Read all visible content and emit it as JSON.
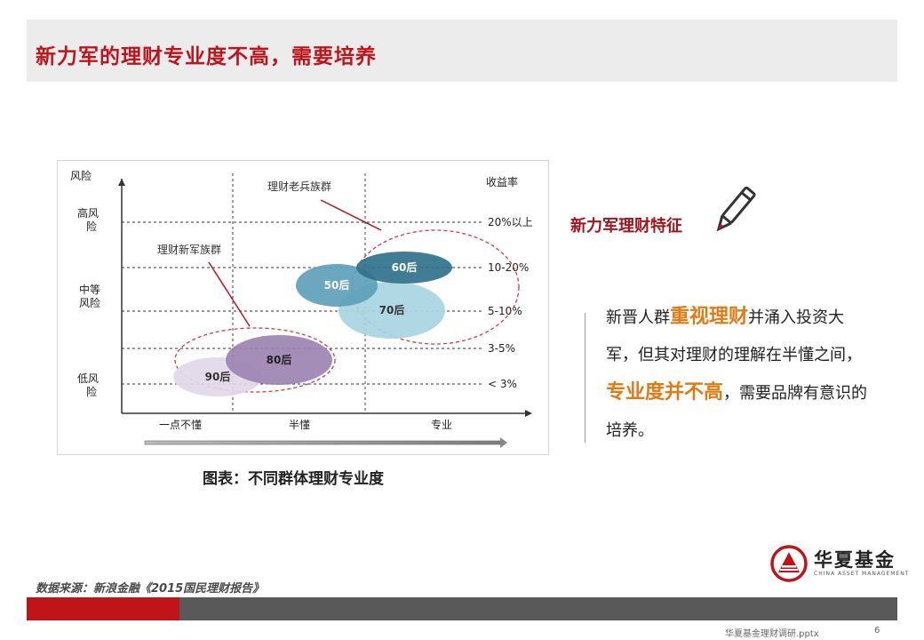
{
  "slide": {
    "title": "新力军的理财专业度不高，需要培养",
    "caption": "图表：不同群体理财专业度",
    "side_heading": "新力军理财特征",
    "side_text": [
      {
        "text": "新晋人群",
        "highlight": false
      },
      {
        "text": "重视理财",
        "highlight": true
      },
      {
        "text": "并涌入投资大军，但其对理财的理解在半懂之间，",
        "highlight": false
      },
      {
        "text": "专业度并不高",
        "highlight": true
      },
      {
        "text": "，需要品牌有意识的培养。",
        "highlight": false
      }
    ],
    "logo_name": "华夏基金",
    "logo_sub": "CHINA ASSET MANAGEMENT",
    "source": "数据来源：新浪金融《2015国民理财报告》",
    "footer_file": "华夏基金理财调研.pptx",
    "page_number": "6",
    "colors": {
      "title": "#c0141b",
      "highlight": "#e07b14",
      "footer_red": "#c0141b",
      "footer_grey": "#595959"
    }
  },
  "chart_data": {
    "type": "scatter",
    "x_axis": {
      "categories": [
        "一点不懂",
        "半懂",
        "专业"
      ]
    },
    "y_axis": {
      "title": "风险",
      "right_title": "收益率",
      "left_labels": [
        "高风险",
        "中等风险",
        "低风险"
      ],
      "right_labels": [
        "20%以上",
        "10-20%",
        "5-10%",
        "3-5%",
        "< 3%"
      ]
    },
    "series": [
      {
        "name": "90后",
        "group": "理财新军族群",
        "expertise": "一点不懂",
        "return_band": "< 3%",
        "color": "#e1d8e8"
      },
      {
        "name": "80后",
        "group": "理财新军族群",
        "expertise": "半懂",
        "return_band": "3-5%",
        "color": "#9c84b2"
      },
      {
        "name": "70后",
        "group": "理财老兵族群",
        "expertise": "专业",
        "return_band": "5-10%",
        "color": "#a9d4e2"
      },
      {
        "name": "50后",
        "group": "理财老兵族群",
        "expertise": "专业",
        "return_band": "10-20%",
        "color": "#5e9fba"
      },
      {
        "name": "60后",
        "group": "理财老兵族群",
        "expertise": "专业",
        "return_band": "10-20%",
        "color": "#31718c"
      }
    ],
    "groups": [
      "理财老兵族群",
      "理财新军族群"
    ]
  }
}
